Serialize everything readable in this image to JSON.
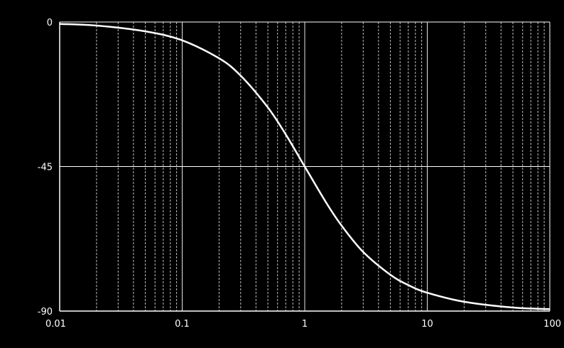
{
  "chart_data": {
    "type": "line",
    "title": "",
    "xlabel": "",
    "ylabel": "",
    "x_scale": "log",
    "xlim": [
      0.01,
      100
    ],
    "ylim": [
      -90,
      0
    ],
    "grid": true,
    "legend": "none",
    "x_ticks": [
      {
        "value": 0.01,
        "label": "0.01"
      },
      {
        "value": 0.1,
        "label": "0.1"
      },
      {
        "value": 1,
        "label": "1"
      },
      {
        "value": 10,
        "label": "10"
      },
      {
        "value": 100,
        "label": "100"
      }
    ],
    "y_ticks": [
      {
        "value": 0,
        "label": "0"
      },
      {
        "value": -45,
        "label": "-45"
      },
      {
        "value": -90,
        "label": "-90"
      }
    ],
    "series": [
      {
        "x": [
          0.01,
          0.02,
          0.05,
          0.1,
          0.2,
          0.3,
          0.5,
          0.7,
          1,
          1.5,
          2,
          3,
          5,
          7,
          10,
          20,
          50,
          100
        ],
        "y": [
          -0.6,
          -1.1,
          -2.9,
          -5.7,
          -11.3,
          -16.7,
          -26.6,
          -35.0,
          -45.0,
          -56.3,
          -63.4,
          -71.6,
          -78.7,
          -81.9,
          -84.3,
          -87.1,
          -88.9,
          -89.4
        ],
        "color": "#ffffff"
      }
    ]
  }
}
